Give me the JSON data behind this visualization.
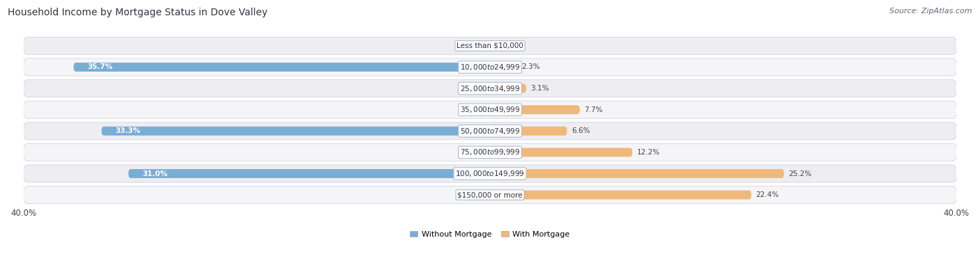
{
  "title": "Household Income by Mortgage Status in Dove Valley",
  "source": "Source: ZipAtlas.com",
  "categories": [
    "Less than $10,000",
    "$10,000 to $24,999",
    "$25,000 to $34,999",
    "$35,000 to $49,999",
    "$50,000 to $74,999",
    "$75,000 to $99,999",
    "$100,000 to $149,999",
    "$150,000 or more"
  ],
  "without_mortgage": [
    0.0,
    35.7,
    0.0,
    0.0,
    33.3,
    0.0,
    31.0,
    0.0
  ],
  "with_mortgage": [
    0.0,
    2.3,
    3.1,
    7.7,
    6.6,
    12.2,
    25.2,
    22.4
  ],
  "color_without": "#7aadd4",
  "color_with": "#f0b87a",
  "axis_max": 40.0,
  "row_colors": [
    "#ededf2",
    "#f5f5f8"
  ],
  "title_fontsize": 10,
  "source_fontsize": 8,
  "label_fontsize": 7.5,
  "cat_fontsize": 7.5,
  "tick_fontsize": 8.5,
  "legend_fontsize": 8
}
